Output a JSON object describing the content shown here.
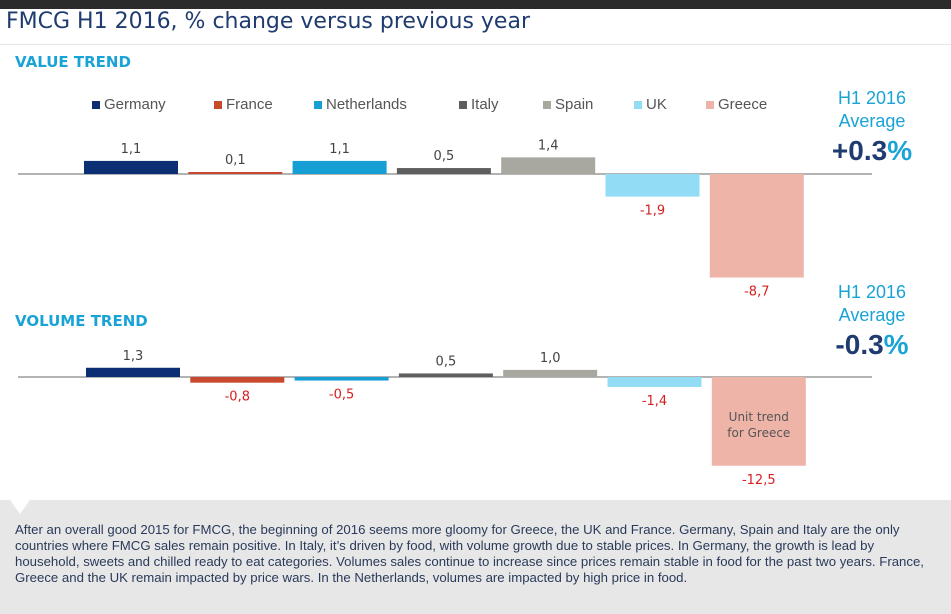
{
  "title": "FMCG H1 2016, % change versus previous year",
  "sections": {
    "value_label": "VALUE TREND",
    "volume_label": "VOLUME TREND"
  },
  "averages": {
    "value": {
      "label_line1": "H1 2016",
      "label_line2": "Average",
      "value": "+0.3",
      "unit": "%"
    },
    "volume": {
      "label_line1": "H1 2016",
      "label_line2": "Average",
      "value": "-0.3",
      "unit": "%"
    }
  },
  "colors": {
    "Germany": "#0c2f73",
    "France": "#c9492e",
    "Netherlands": "#159fd4",
    "Italy": "#5e5e5e",
    "Spain": "#a8a8a0",
    "UK": "#93dcf5",
    "Greece": "#eeb4a8",
    "negative_label": "#d62020",
    "positive_label": "#444444"
  },
  "chart_data": [
    {
      "type": "bar",
      "title": "VALUE TREND",
      "categories": [
        "Germany",
        "France",
        "Netherlands",
        "Italy",
        "Spain",
        "UK",
        "Greece"
      ],
      "values": [
        1.1,
        0.1,
        1.1,
        0.5,
        1.4,
        -1.9,
        -8.7
      ],
      "value_labels": [
        "1,1",
        "0,1",
        "1,1",
        "0,5",
        "1,4",
        "-1,9",
        "-8,7"
      ]
    },
    {
      "type": "bar",
      "title": "VOLUME TREND",
      "categories": [
        "Germany",
        "France",
        "Netherlands",
        "Italy",
        "Spain",
        "UK",
        "Greece"
      ],
      "values": [
        1.3,
        -0.8,
        -0.5,
        0.5,
        1.0,
        -1.4,
        -12.5
      ],
      "value_labels": [
        "1,3",
        "-0,8",
        "-0,5",
        "0,5",
        "1,0",
        "-1,4",
        "-12,5"
      ],
      "annotation": {
        "category": "Greece",
        "line1": "Unit trend",
        "line2": "for Greece"
      }
    }
  ],
  "note": "After an overall good 2015 for FMCG, the beginning of 2016 seems more gloomy for Greece, the UK and France. Germany, Spain and Italy are the only countries where FMCG sales remain positive. In Italy, it’s driven by food, with volume growth due to stable prices. In Germany, the growth is lead by household, sweets and chilled ready to eat categories. Volumes sales continue to increase since prices remain stable in food for the past two years. France, Greece and the UK remain impacted by price wars. In the Netherlands, volumes are impacted by high price in food."
}
